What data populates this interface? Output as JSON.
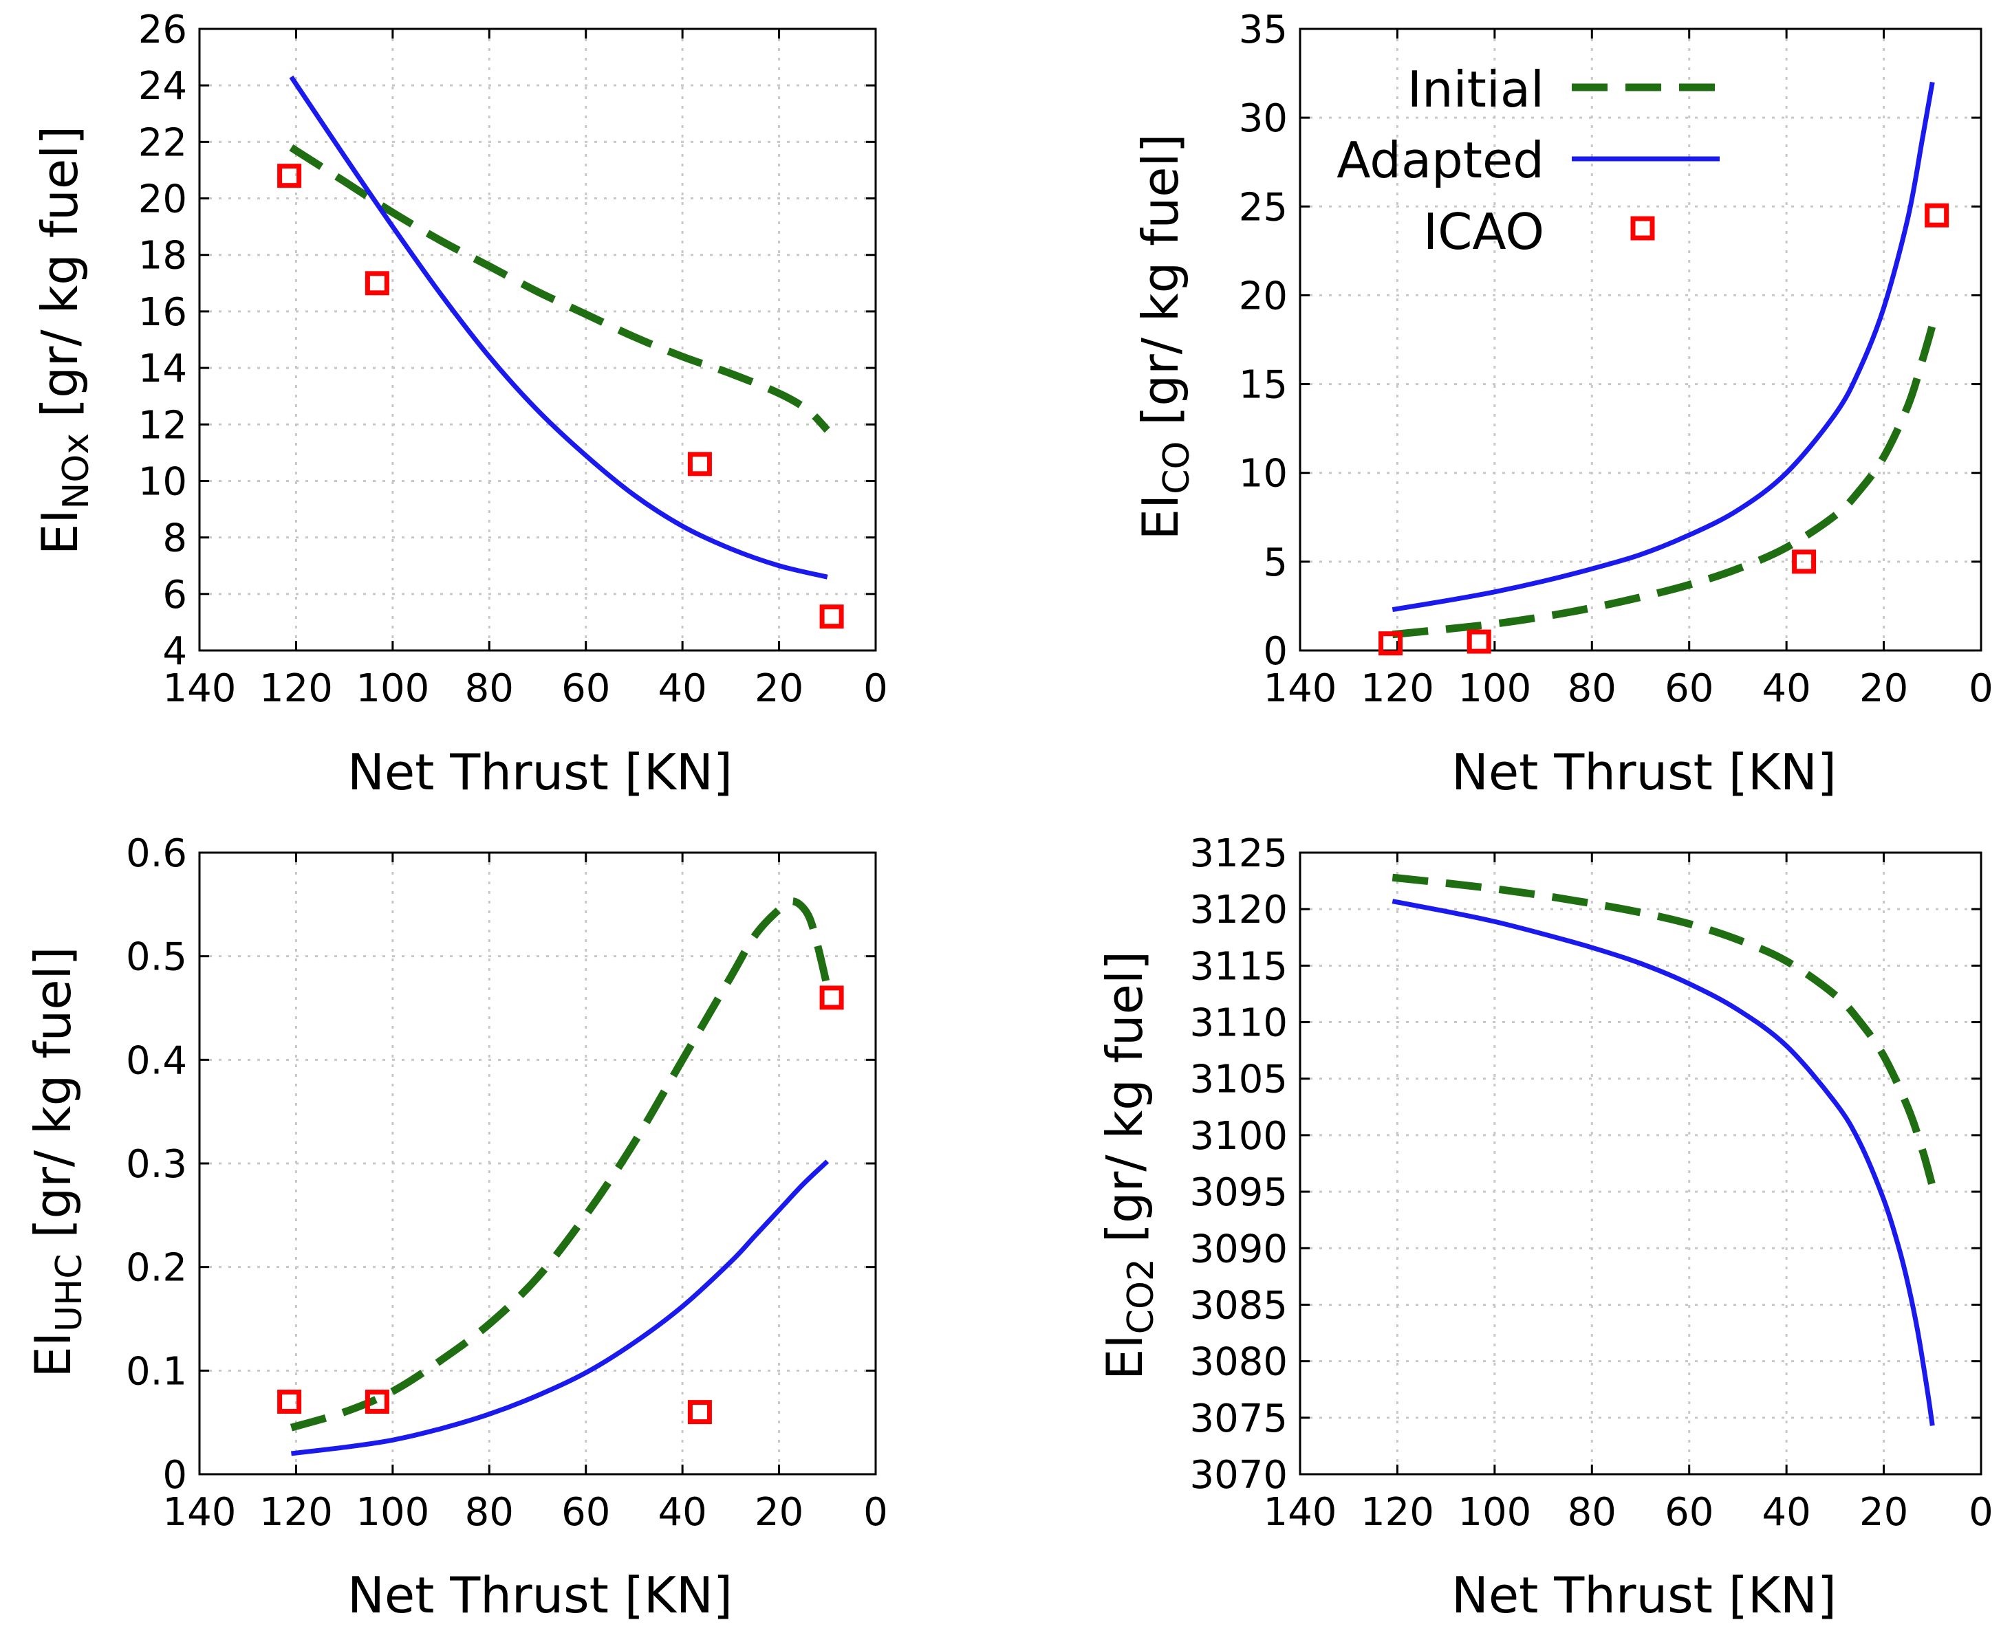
{
  "figure": {
    "xlabel": "Net Thrust [KN]",
    "legend": {
      "initial_label": "Initial",
      "adapted_label": "Adapted",
      "icao_label": "ICAO"
    },
    "colors": {
      "initial": "#1f6e12",
      "adapted": "#1a1aee",
      "icao": "#ff0000"
    }
  },
  "chart_data": [
    {
      "id": "nox",
      "type": "line",
      "title": "",
      "ylabel_main": "EI",
      "ylabel_sub": "NOx",
      "ylabel_tail": "[gr/ kg fuel]",
      "xlabel": "Net Thrust [KN]",
      "xlim": [
        140,
        0
      ],
      "ylim": [
        4,
        26
      ],
      "xticks": [
        140,
        120,
        100,
        80,
        60,
        40,
        20,
        0
      ],
      "yticks": [
        4,
        6,
        8,
        10,
        12,
        14,
        16,
        18,
        20,
        22,
        24,
        26
      ],
      "series": [
        {
          "name": "Initial",
          "style": "dashed",
          "x": [
            121,
            110,
            100,
            90,
            80,
            70,
            60,
            50,
            40,
            30,
            20,
            14,
            10
          ],
          "y": [
            21.8,
            20.6,
            19.5,
            18.5,
            17.6,
            16.7,
            15.9,
            15.1,
            14.4,
            13.8,
            13.1,
            12.5,
            11.8
          ]
        },
        {
          "name": "Adapted",
          "style": "solid",
          "x": [
            121,
            110,
            100,
            90,
            80,
            70,
            60,
            50,
            40,
            30,
            20,
            10
          ],
          "y": [
            24.3,
            21.5,
            19.0,
            16.6,
            14.4,
            12.5,
            10.9,
            9.5,
            8.4,
            7.6,
            7.0,
            6.6
          ]
        },
        {
          "name": "ICAO",
          "style": "markers",
          "x": [
            121.4,
            103.2,
            36.4,
            9.1
          ],
          "y": [
            20.8,
            17.0,
            10.6,
            5.2
          ]
        }
      ]
    },
    {
      "id": "co",
      "type": "line",
      "title": "",
      "ylabel_main": "EI",
      "ylabel_sub": "CO",
      "ylabel_tail": "[gr/ kg fuel]",
      "xlabel": "Net Thrust [KN]",
      "xlim": [
        140,
        0
      ],
      "ylim": [
        0,
        35
      ],
      "xticks": [
        140,
        120,
        100,
        80,
        60,
        40,
        20,
        0
      ],
      "yticks": [
        0,
        5,
        10,
        15,
        20,
        25,
        30,
        35
      ],
      "legend_position": "top-right",
      "series": [
        {
          "name": "Initial",
          "style": "dashed",
          "x": [
            121,
            110,
            100,
            90,
            80,
            70,
            60,
            50,
            40,
            30,
            25,
            20,
            15,
            12,
            10
          ],
          "y": [
            0.9,
            1.2,
            1.5,
            1.9,
            2.4,
            3.0,
            3.7,
            4.6,
            5.8,
            7.6,
            9.0,
            10.9,
            13.8,
            16.4,
            18.3
          ]
        },
        {
          "name": "Adapted",
          "style": "solid",
          "x": [
            121,
            110,
            100,
            90,
            80,
            70,
            60,
            50,
            40,
            30,
            25,
            20,
            15,
            12,
            10
          ],
          "y": [
            2.3,
            2.8,
            3.3,
            3.9,
            4.6,
            5.4,
            6.5,
            7.9,
            10.0,
            13.3,
            15.8,
            19.3,
            24.4,
            28.9,
            32.0
          ]
        },
        {
          "name": "ICAO",
          "style": "markers",
          "x": [
            121.4,
            103.2,
            36.4,
            9.1
          ],
          "y": [
            0.4,
            0.5,
            5.0,
            24.5
          ]
        }
      ]
    },
    {
      "id": "uhc",
      "type": "line",
      "title": "",
      "ylabel_main": "EI",
      "ylabel_sub": "UHC",
      "ylabel_tail": "[gr/ kg fuel]",
      "xlabel": "Net Thrust [KN]",
      "xlim": [
        140,
        0
      ],
      "ylim": [
        0,
        0.6
      ],
      "xticks": [
        140,
        120,
        100,
        80,
        60,
        40,
        20,
        0
      ],
      "yticks": [
        0,
        0.1,
        0.2,
        0.3,
        0.4,
        0.5,
        0.6
      ],
      "series": [
        {
          "name": "Initial",
          "style": "dashed",
          "x": [
            121,
            110,
            100,
            90,
            80,
            70,
            60,
            50,
            40,
            30,
            25,
            20,
            17,
            14,
            12,
            10
          ],
          "y": [
            0.045,
            0.06,
            0.08,
            0.11,
            0.145,
            0.19,
            0.25,
            0.32,
            0.4,
            0.48,
            0.52,
            0.545,
            0.553,
            0.54,
            0.51,
            0.47
          ]
        },
        {
          "name": "Adapted",
          "style": "solid",
          "x": [
            121,
            110,
            100,
            90,
            80,
            70,
            60,
            50,
            40,
            30,
            25,
            20,
            15,
            10
          ],
          "y": [
            0.02,
            0.026,
            0.033,
            0.044,
            0.058,
            0.076,
            0.098,
            0.127,
            0.162,
            0.205,
            0.23,
            0.255,
            0.28,
            0.302
          ]
        },
        {
          "name": "ICAO",
          "style": "markers",
          "x": [
            121.4,
            103.2,
            36.4,
            9.1
          ],
          "y": [
            0.07,
            0.07,
            0.06,
            0.46
          ]
        }
      ]
    },
    {
      "id": "co2",
      "type": "line",
      "title": "",
      "ylabel_main": "EI",
      "ylabel_sub": "CO2",
      "ylabel_tail": "[gr/ kg fuel]",
      "xlabel": "Net Thrust [KN]",
      "xlim": [
        140,
        0
      ],
      "ylim": [
        3070,
        3125
      ],
      "xticks": [
        140,
        120,
        100,
        80,
        60,
        40,
        20,
        0
      ],
      "yticks": [
        3070,
        3075,
        3080,
        3085,
        3090,
        3095,
        3100,
        3105,
        3110,
        3115,
        3120,
        3125
      ],
      "series": [
        {
          "name": "Initial",
          "style": "dashed",
          "x": [
            121,
            110,
            100,
            90,
            80,
            70,
            60,
            50,
            40,
            30,
            25,
            20,
            15,
            12,
            10
          ],
          "y": [
            3122.8,
            3122.3,
            3121.8,
            3121.2,
            3120.5,
            3119.7,
            3118.7,
            3117.3,
            3115.4,
            3112.4,
            3110.1,
            3107.0,
            3102.4,
            3098.6,
            3095.5
          ]
        },
        {
          "name": "Adapted",
          "style": "solid",
          "x": [
            121,
            110,
            100,
            90,
            80,
            70,
            60,
            50,
            40,
            30,
            25,
            20,
            17,
            15,
            13,
            11,
            10
          ],
          "y": [
            3120.7,
            3119.8,
            3118.9,
            3117.8,
            3116.6,
            3115.2,
            3113.4,
            3111.1,
            3107.9,
            3102.9,
            3099.4,
            3094.3,
            3090.2,
            3086.8,
            3082.6,
            3077.3,
            3074.3
          ]
        }
      ]
    }
  ]
}
